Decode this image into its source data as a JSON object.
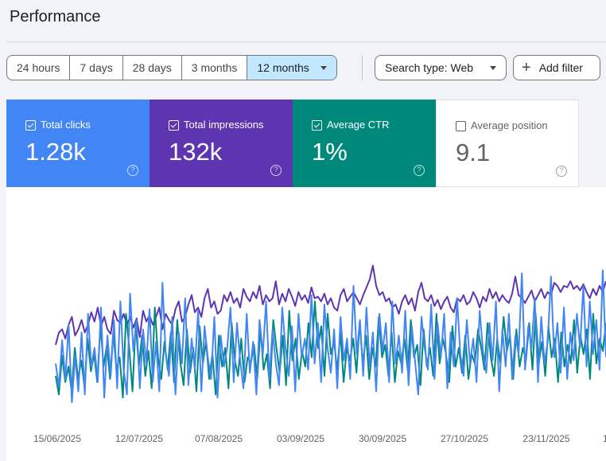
{
  "page": {
    "title": "Performance"
  },
  "toolbar": {
    "date_ranges": [
      {
        "label": "24 hours",
        "selected": false
      },
      {
        "label": "7 days",
        "selected": false
      },
      {
        "label": "28 days",
        "selected": false
      },
      {
        "label": "3 months",
        "selected": false
      },
      {
        "label": "12 months",
        "selected": true
      }
    ],
    "search_type_label": "Search type: Web",
    "add_filter_label": "Add filter"
  },
  "metrics": [
    {
      "label": "Total clicks",
      "value": "1.28k",
      "checked": true,
      "color": "#4285f4"
    },
    {
      "label": "Total impressions",
      "value": "132k",
      "checked": true,
      "color": "#5e35b1"
    },
    {
      "label": "Average CTR",
      "value": "1%",
      "checked": true,
      "color": "#00897b"
    },
    {
      "label": "Average position",
      "value": "9.1",
      "checked": false,
      "color": "#ffffff"
    }
  ],
  "chart_data": {
    "type": "line",
    "x_tick_labels": [
      "15/06/2025",
      "12/07/2025",
      "07/08/2025",
      "03/09/2025",
      "30/09/2025",
      "27/10/2025",
      "23/11/2025",
      "1"
    ],
    "series_colors": {
      "clicks": "#4285f4",
      "impressions": "#5e35b1",
      "ctr": "#00897b"
    },
    "y_axis_visible": false,
    "grid": false,
    "series": [
      {
        "metric": "impressions",
        "values": [
          0.42,
          0.5,
          0.52,
          0.46,
          0.55,
          0.6,
          0.48,
          0.52,
          0.58,
          0.5,
          0.55,
          0.63,
          0.57,
          0.66,
          0.54,
          0.6,
          0.52,
          0.49,
          0.64,
          0.58,
          0.56,
          0.62,
          0.55,
          0.6,
          0.53,
          0.59,
          0.47,
          0.64,
          0.57,
          0.61,
          0.55,
          0.6,
          0.66,
          0.52,
          0.62,
          0.58,
          0.55,
          0.65,
          0.7,
          0.57,
          0.6,
          0.68,
          0.74,
          0.63,
          0.66,
          0.6,
          0.72,
          0.78,
          0.66,
          0.7,
          0.62,
          0.64,
          0.74,
          0.7,
          0.76,
          0.69,
          0.72,
          0.66,
          0.78,
          0.73,
          0.7,
          0.76,
          0.72,
          0.8,
          0.68,
          0.74,
          0.7,
          0.72,
          0.83,
          0.68,
          0.75,
          0.7,
          0.78,
          0.73,
          0.67,
          0.76,
          0.71,
          0.74,
          0.69,
          0.79,
          0.72,
          0.73,
          0.7,
          0.75,
          0.68,
          0.72,
          0.66,
          0.64,
          0.74,
          0.78,
          0.7,
          0.73,
          0.76,
          0.72,
          0.68,
          0.74,
          0.79,
          0.84,
          0.93,
          0.8,
          0.74,
          0.76,
          0.7,
          0.72,
          0.66,
          0.68,
          0.62,
          0.7,
          0.74,
          0.68,
          0.72,
          0.64,
          0.76,
          0.82,
          0.72,
          0.7,
          0.74,
          0.67,
          0.71,
          0.65,
          0.7,
          0.73,
          0.66,
          0.63,
          0.72,
          0.7,
          0.74,
          0.68,
          0.7,
          0.76,
          0.72,
          0.66,
          0.73,
          0.7,
          0.78,
          0.72,
          0.76,
          0.7,
          0.74,
          0.71,
          0.69,
          0.75,
          0.86,
          0.74,
          0.72,
          0.69,
          0.73,
          0.77,
          0.7,
          0.74,
          0.78,
          0.72,
          0.76,
          0.74,
          0.82,
          0.8,
          0.76,
          0.8,
          0.79,
          0.83,
          0.78,
          0.8,
          0.77,
          0.81,
          0.76,
          0.72,
          0.78,
          0.74,
          0.8,
          0.76,
          0.83
        ]
      },
      {
        "metric": "ctr",
        "values": [
          0.22,
          0.1,
          0.35,
          0.18,
          0.28,
          0.12,
          0.4,
          0.2,
          0.32,
          0.15,
          0.46,
          0.25,
          0.36,
          0.18,
          0.55,
          0.28,
          0.42,
          0.2,
          0.5,
          0.26,
          0.34,
          0.08,
          0.62,
          0.4,
          0.12,
          0.56,
          0.28,
          0.48,
          0.22,
          0.38,
          0.14,
          0.66,
          0.34,
          0.2,
          0.44,
          0.26,
          0.5,
          0.18,
          0.58,
          0.3,
          0.16,
          0.52,
          0.24,
          0.4,
          0.12,
          0.54,
          0.3,
          0.44,
          0.2,
          0.36,
          0.1,
          0.48,
          0.28,
          0.4,
          0.14,
          0.56,
          0.32,
          0.22,
          0.46,
          0.18,
          0.34,
          0.3,
          0.42,
          0.2,
          0.52,
          0.26,
          0.36,
          0.14,
          0.58,
          0.4,
          0.24,
          0.48,
          0.16,
          0.64,
          0.32,
          0.46,
          0.2,
          0.38,
          0.28,
          0.56,
          0.34,
          0.7,
          0.4,
          0.54,
          0.22,
          0.62,
          0.36,
          0.44,
          0.26,
          0.5,
          0.18,
          0.4,
          0.32,
          0.46,
          0.24,
          0.56,
          0.3,
          0.48,
          0.2,
          0.4,
          0.28,
          0.6,
          0.34,
          0.42,
          0.22,
          0.5,
          0.18,
          0.38,
          0.3,
          0.46,
          0.26,
          0.58,
          0.34,
          0.42,
          0.16,
          0.52,
          0.28,
          0.4,
          0.22,
          0.62,
          0.3,
          0.46,
          0.36,
          0.18,
          0.54,
          0.28,
          0.4,
          0.24,
          0.48,
          0.2,
          0.36,
          0.3,
          0.52,
          0.4,
          0.26,
          0.56,
          0.34,
          0.22,
          0.46,
          0.3,
          0.6,
          0.38,
          0.48,
          0.2,
          0.52,
          0.28,
          0.4,
          0.32,
          0.56,
          0.26,
          0.62,
          0.3,
          0.44,
          0.22,
          0.54,
          0.34,
          0.46,
          0.18,
          0.5,
          0.28,
          0.42,
          0.3,
          0.58,
          0.24,
          0.48,
          0.36,
          0.52,
          0.2,
          0.62,
          0.3,
          0.46,
          0.38,
          0.56
        ]
      },
      {
        "metric": "clicks",
        "values": [
          0.3,
          0.15,
          0.45,
          0.2,
          0.55,
          0.05,
          0.35,
          0.12,
          0.5,
          0.1,
          0.62,
          0.28,
          0.4,
          0.18,
          0.66,
          0.08,
          0.48,
          0.22,
          0.58,
          0.14,
          0.7,
          0.26,
          0.1,
          0.75,
          0.38,
          0.58,
          0.14,
          0.52,
          0.3,
          0.65,
          0.18,
          0.44,
          0.12,
          0.82,
          0.36,
          0.22,
          0.6,
          0.1,
          0.5,
          0.3,
          0.72,
          0.16,
          0.46,
          0.26,
          0.64,
          0.12,
          0.54,
          0.34,
          0.2,
          0.6,
          0.08,
          0.48,
          0.28,
          0.4,
          0.66,
          0.18,
          0.56,
          0.32,
          0.14,
          0.62,
          0.24,
          0.44,
          0.1,
          0.58,
          0.36,
          0.7,
          0.2,
          0.52,
          0.3,
          0.16,
          0.66,
          0.4,
          0.22,
          0.54,
          0.12,
          0.62,
          0.34,
          0.46,
          0.26,
          0.74,
          0.3,
          0.56,
          0.18,
          0.68,
          0.4,
          0.24,
          0.52,
          0.14,
          0.6,
          0.32,
          0.46,
          0.2,
          0.8,
          0.36,
          0.58,
          0.22,
          0.66,
          0.28,
          0.5,
          0.12,
          0.62,
          0.38,
          0.56,
          0.18,
          0.7,
          0.3,
          0.48,
          0.24,
          0.64,
          0.16,
          0.54,
          0.32,
          0.1,
          0.6,
          0.4,
          0.26,
          0.68,
          0.2,
          0.56,
          0.34,
          0.62,
          0.14,
          0.5,
          0.28,
          0.72,
          0.36,
          0.22,
          0.58,
          0.3,
          0.46,
          0.18,
          0.64,
          0.38,
          0.24,
          0.56,
          0.32,
          0.7,
          0.12,
          0.52,
          0.28,
          0.62,
          0.2,
          0.48,
          0.36,
          0.88,
          0.26,
          0.54,
          0.4,
          0.72,
          0.18,
          0.6,
          0.3,
          0.44,
          0.86,
          0.34,
          0.56,
          0.24,
          0.66,
          0.2,
          0.5,
          0.32,
          0.62,
          0.4,
          0.8,
          0.28,
          0.7,
          0.36,
          0.58,
          0.26,
          0.9,
          0.34
        ]
      }
    ]
  }
}
